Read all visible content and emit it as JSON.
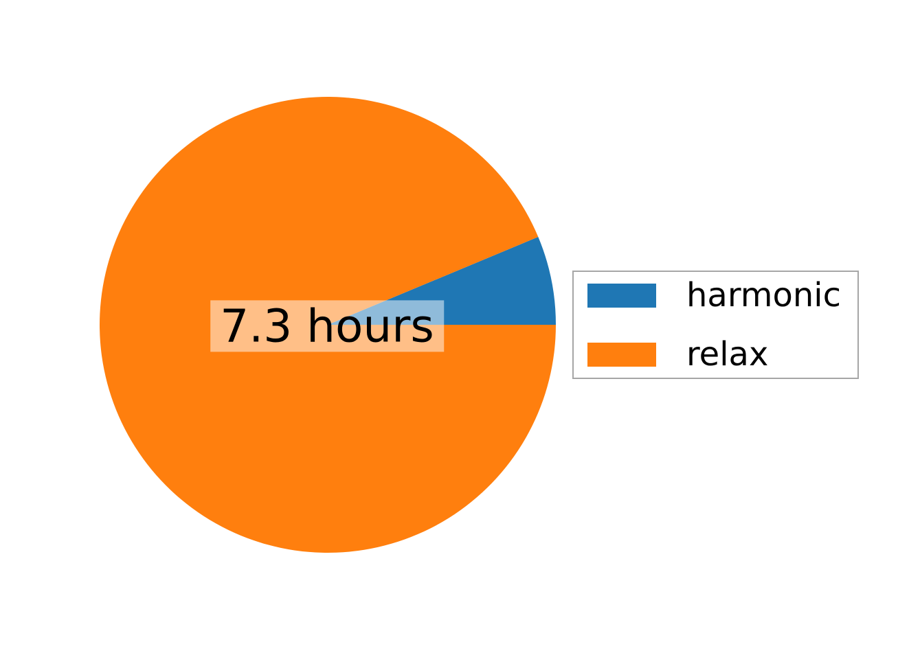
{
  "chart_data": {
    "type": "pie",
    "labels": [
      "harmonic",
      "relax"
    ],
    "values": [
      6.3,
      93.7
    ],
    "unit": "percent_of_circle",
    "colors": [
      "#1f77b4",
      "#ff7f0e"
    ],
    "start_angle": 0,
    "counterclockwise": true,
    "center_label": "7.3 hours",
    "center_label_bbox_color": "rgba(255,255,255,0.5)",
    "title": "",
    "legend_position": "center right",
    "background": "#ffffff",
    "text_color": "#000000"
  },
  "legend": {
    "items": [
      {
        "label": "harmonic",
        "color": "#1f77b4"
      },
      {
        "label": "relax",
        "color": "#ff7f0e"
      }
    ]
  }
}
